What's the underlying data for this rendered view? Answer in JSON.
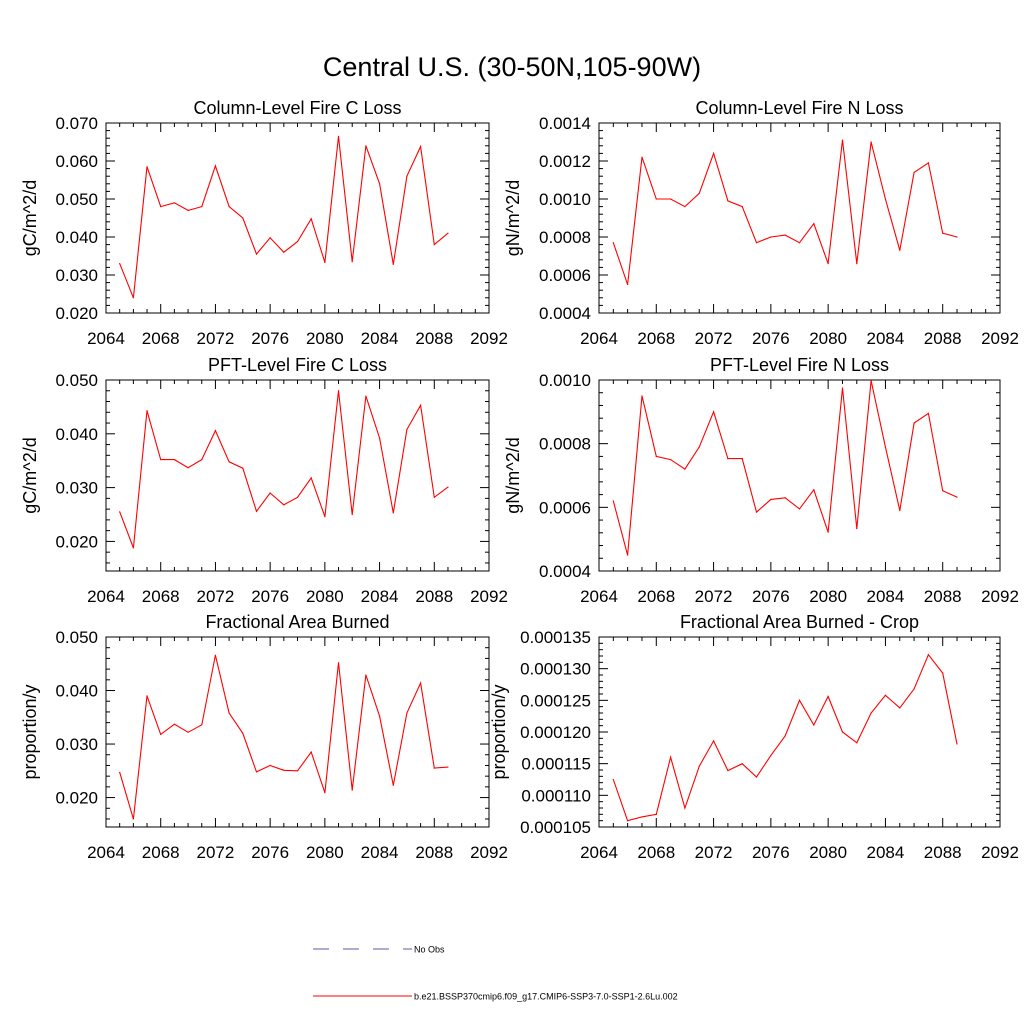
{
  "figure": {
    "title": "Central U.S. (30-50N,105-90W)"
  },
  "legend": {
    "items": [
      {
        "label": "No Obs",
        "color": "#5a5aa8",
        "style": "dashed"
      },
      {
        "label": "b.e21.BSSP370cmip6.f09_g17.CMIP6-SSP3-7.0-SSP1-2.6Lu.002",
        "color": "#ff0000",
        "style": "solid"
      }
    ]
  },
  "chart_data": [
    {
      "type": "line",
      "title": "Column-Level Fire C Loss",
      "ylabel": "gC/m^2/d",
      "xlim": [
        2064,
        2092
      ],
      "ylim": [
        0.02,
        0.07
      ],
      "xticks": [
        2064,
        2068,
        2072,
        2076,
        2080,
        2084,
        2088,
        2092
      ],
      "xtick_labels": [
        "2064",
        "2068",
        "2072",
        "2076",
        "2080",
        "2084",
        "2088",
        "2092"
      ],
      "yticks": [
        0.02,
        0.03,
        0.04,
        0.05,
        0.06,
        0.07
      ],
      "ytick_labels": [
        "0.020",
        "0.030",
        "0.040",
        "0.050",
        "0.060",
        "0.070"
      ],
      "x": [
        2065,
        2066,
        2067,
        2068,
        2069,
        2070,
        2071,
        2072,
        2073,
        2074,
        2075,
        2076,
        2077,
        2078,
        2079,
        2080,
        2081,
        2082,
        2083,
        2084,
        2085,
        2086,
        2087,
        2088,
        2089
      ],
      "series": [
        {
          "color": "#ff0000",
          "values": [
            0.033,
            0.024,
            0.0585,
            0.048,
            0.049,
            0.047,
            0.048,
            0.0587,
            0.048,
            0.045,
            0.0355,
            0.0398,
            0.036,
            0.0388,
            0.0448,
            0.0333,
            0.0665,
            0.0335,
            0.064,
            0.054,
            0.0328,
            0.056,
            0.0638,
            0.038,
            0.041
          ]
        }
      ]
    },
    {
      "type": "line",
      "title": "Column-Level Fire N Loss",
      "ylabel": "gN/m^2/d",
      "xlim": [
        2064,
        2092
      ],
      "ylim": [
        0.0004,
        0.0014
      ],
      "xticks": [
        2064,
        2068,
        2072,
        2076,
        2080,
        2084,
        2088,
        2092
      ],
      "xtick_labels": [
        "2064",
        "2068",
        "2072",
        "2076",
        "2080",
        "2084",
        "2088",
        "2092"
      ],
      "yticks": [
        0.0004,
        0.0006,
        0.0008,
        0.001,
        0.0012,
        0.0014
      ],
      "ytick_labels": [
        "0.0004",
        "0.0006",
        "0.0008",
        "0.0010",
        "0.0012",
        "0.0014"
      ],
      "x": [
        2065,
        2066,
        2067,
        2068,
        2069,
        2070,
        2071,
        2072,
        2073,
        2074,
        2075,
        2076,
        2077,
        2078,
        2079,
        2080,
        2081,
        2082,
        2083,
        2084,
        2085,
        2086,
        2087,
        2088,
        2089
      ],
      "series": [
        {
          "color": "#ff0000",
          "values": [
            0.00077,
            0.00055,
            0.00122,
            0.001,
            0.001,
            0.00096,
            0.00103,
            0.00124,
            0.00099,
            0.00096,
            0.00077,
            0.0008,
            0.00081,
            0.00077,
            0.00087,
            0.00066,
            0.00131,
            0.00066,
            0.0013,
            0.001,
            0.00073,
            0.00114,
            0.00119,
            0.00082,
            0.0008
          ]
        }
      ]
    },
    {
      "type": "line",
      "title": "PFT-Level Fire C Loss",
      "ylabel": "gC/m^2/d",
      "xlim": [
        2064,
        2092
      ],
      "ylim": [
        0.0145,
        0.05
      ],
      "xticks": [
        2064,
        2068,
        2072,
        2076,
        2080,
        2084,
        2088,
        2092
      ],
      "xtick_labels": [
        "2064",
        "2068",
        "2072",
        "2076",
        "2080",
        "2084",
        "2088",
        "2092"
      ],
      "yticks": [
        0.02,
        0.03,
        0.04,
        0.05
      ],
      "ytick_labels": [
        "0.020",
        "0.030",
        "0.040",
        "0.050"
      ],
      "x": [
        2065,
        2066,
        2067,
        2068,
        2069,
        2070,
        2071,
        2072,
        2073,
        2074,
        2075,
        2076,
        2077,
        2078,
        2079,
        2080,
        2081,
        2082,
        2083,
        2084,
        2085,
        2086,
        2087,
        2088,
        2089
      ],
      "series": [
        {
          "color": "#ff0000",
          "values": [
            0.0255,
            0.0188,
            0.0443,
            0.0352,
            0.0352,
            0.0337,
            0.0352,
            0.0406,
            0.0348,
            0.0336,
            0.0256,
            0.029,
            0.0268,
            0.0282,
            0.0318,
            0.0246,
            0.048,
            0.025,
            0.047,
            0.0392,
            0.0253,
            0.0408,
            0.0453,
            0.0282,
            0.0301
          ]
        }
      ]
    },
    {
      "type": "line",
      "title": "PFT-Level Fire N Loss",
      "ylabel": "gN/m^2/d",
      "xlim": [
        2064,
        2092
      ],
      "ylim": [
        0.0004,
        0.001
      ],
      "xticks": [
        2064,
        2068,
        2072,
        2076,
        2080,
        2084,
        2088,
        2092
      ],
      "xtick_labels": [
        "2064",
        "2068",
        "2072",
        "2076",
        "2080",
        "2084",
        "2088",
        "2092"
      ],
      "yticks": [
        0.0004,
        0.0006,
        0.0008,
        0.001
      ],
      "ytick_labels": [
        "0.0004",
        "0.0006",
        "0.0008",
        "0.0010"
      ],
      "x": [
        2065,
        2066,
        2067,
        2068,
        2069,
        2070,
        2071,
        2072,
        2073,
        2074,
        2075,
        2076,
        2077,
        2078,
        2079,
        2080,
        2081,
        2082,
        2083,
        2084,
        2085,
        2086,
        2087,
        2088,
        2089
      ],
      "series": [
        {
          "color": "#ff0000",
          "values": [
            0.00062,
            0.00045,
            0.00095,
            0.00076,
            0.00075,
            0.00072,
            0.00079,
            0.0009,
            0.000753,
            0.000753,
            0.000585,
            0.000625,
            0.00063,
            0.000595,
            0.000655,
            0.000522,
            0.000975,
            0.000533,
            0.000998,
            0.00079,
            0.00059,
            0.000865,
            0.000895,
            0.000652,
            0.000632
          ]
        }
      ]
    },
    {
      "type": "line",
      "title": "Fractional Area Burned",
      "ylabel": "proportion/y",
      "xlim": [
        2064,
        2092
      ],
      "ylim": [
        0.0145,
        0.05
      ],
      "xticks": [
        2064,
        2068,
        2072,
        2076,
        2080,
        2084,
        2088,
        2092
      ],
      "xtick_labels": [
        "2064",
        "2068",
        "2072",
        "2076",
        "2080",
        "2084",
        "2088",
        "2092"
      ],
      "yticks": [
        0.02,
        0.03,
        0.04,
        0.05
      ],
      "ytick_labels": [
        "0.020",
        "0.030",
        "0.040",
        "0.050"
      ],
      "x": [
        2065,
        2066,
        2067,
        2068,
        2069,
        2070,
        2071,
        2072,
        2073,
        2074,
        2075,
        2076,
        2077,
        2078,
        2079,
        2080,
        2081,
        2082,
        2083,
        2084,
        2085,
        2086,
        2087,
        2088,
        2089
      ],
      "series": [
        {
          "color": "#ff0000",
          "values": [
            0.0247,
            0.016,
            0.039,
            0.0318,
            0.0337,
            0.0322,
            0.0336,
            0.0466,
            0.0358,
            0.032,
            0.0248,
            0.026,
            0.0251,
            0.025,
            0.0285,
            0.0209,
            0.0452,
            0.0214,
            0.0429,
            0.0352,
            0.0223,
            0.0358,
            0.0414,
            0.0255,
            0.0257
          ]
        }
      ]
    },
    {
      "type": "line",
      "title": "Fractional Area Burned - Crop",
      "ylabel": "proportion/y",
      "xlim": [
        2064,
        2092
      ],
      "ylim": [
        0.000105,
        0.000135
      ],
      "xticks": [
        2064,
        2068,
        2072,
        2076,
        2080,
        2084,
        2088,
        2092
      ],
      "xtick_labels": [
        "2064",
        "2068",
        "2072",
        "2076",
        "2080",
        "2084",
        "2088",
        "2092"
      ],
      "yticks": [
        0.000105,
        0.00011,
        0.000115,
        0.00012,
        0.000125,
        0.00013,
        0.000135
      ],
      "ytick_labels": [
        "0.000105",
        "0.000110",
        "0.000115",
        "0.000120",
        "0.000125",
        "0.000130",
        "0.000135"
      ],
      "x": [
        2065,
        2066,
        2067,
        2068,
        2069,
        2070,
        2071,
        2072,
        2073,
        2074,
        2075,
        2076,
        2077,
        2078,
        2079,
        2080,
        2081,
        2082,
        2083,
        2084,
        2085,
        2086,
        2087,
        2088,
        2089
      ],
      "series": [
        {
          "color": "#ff0000",
          "values": [
            0.0001125,
            0.000106,
            0.0001066,
            0.000107,
            0.000116,
            0.000108,
            0.0001146,
            0.0001186,
            0.0001139,
            0.000115,
            0.0001129,
            0.0001163,
            0.0001194,
            0.000125,
            0.0001211,
            0.0001256,
            0.00012,
            0.0001183,
            0.000123,
            0.0001258,
            0.0001238,
            0.0001268,
            0.0001322,
            0.0001293,
            0.0001181
          ]
        }
      ]
    }
  ]
}
